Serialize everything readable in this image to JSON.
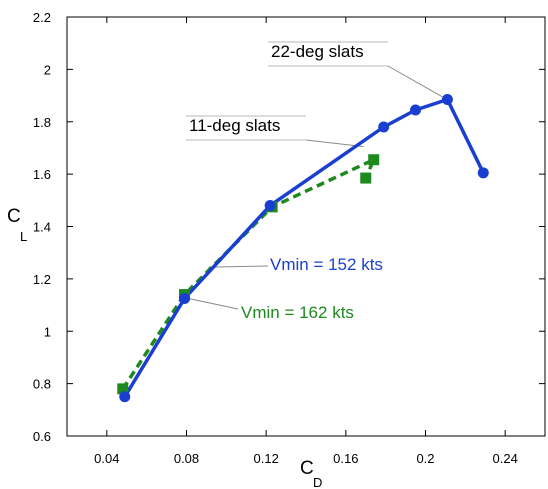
{
  "chart_data": {
    "type": "line",
    "title": "",
    "xlabel": {
      "main": "C",
      "sub": "D"
    },
    "ylabel": {
      "main": "C",
      "sub": "L"
    },
    "xlim": [
      0.02,
      0.26
    ],
    "ylim": [
      0.6,
      2.2
    ],
    "xticks": [
      "0.04",
      "0.08",
      "0.12",
      "0.16",
      "0.2",
      "0.24"
    ],
    "yticks": [
      "0.6",
      "0.8",
      "1",
      "1.2",
      "1.4",
      "1.6",
      "1.8",
      "2",
      "2.2"
    ],
    "grid": false,
    "series": [
      {
        "color": "#1a3fd0",
        "line_style": "solid",
        "marker": "circle",
        "x": [
          0.049,
          0.079,
          0.122,
          0.179,
          0.195,
          0.211,
          0.229
        ],
        "y": [
          0.75,
          1.125,
          1.48,
          1.78,
          1.845,
          1.885,
          1.605
        ]
      },
      {
        "color": "#1e8a1e",
        "line_style": "dashed",
        "marker": "square",
        "x": [
          0.048,
          0.079,
          0.123,
          0.174,
          0.17
        ],
        "y": [
          0.78,
          1.14,
          1.475,
          1.655,
          1.585
        ]
      }
    ],
    "annotations": [
      {
        "text": "22-deg slats",
        "color": "#000000"
      },
      {
        "text": "11-deg slats",
        "color": "#000000"
      },
      {
        "text": "Vmin = 152 kts",
        "color": "#1a3fd0"
      },
      {
        "text": "Vmin = 162 kts",
        "color": "#1e8a1e"
      }
    ]
  }
}
